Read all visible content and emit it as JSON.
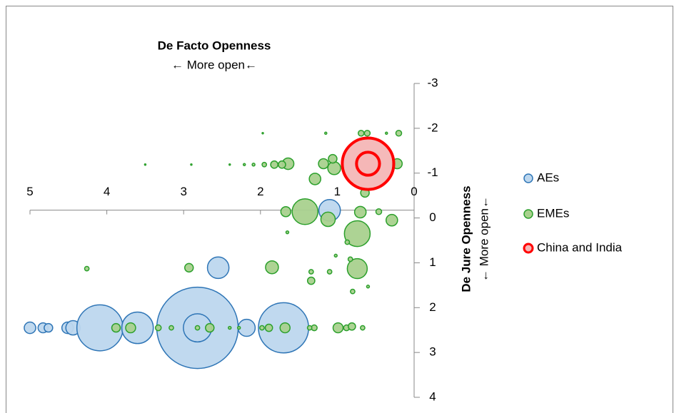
{
  "chart_data": {
    "type": "bubble",
    "x_title": "De Facto Openness",
    "x_subtitle": "← More open←",
    "y_title": "De Jure Openness",
    "y_subtitle": "← More open←",
    "xlim": [
      0,
      5
    ],
    "x_reversed": true,
    "xticks": [
      5,
      4,
      3,
      2,
      1,
      0
    ],
    "ylim": [
      -3,
      4
    ],
    "y_reversed": true,
    "yticks": [
      -3,
      -2,
      -1,
      0,
      1,
      2,
      3,
      4
    ],
    "legend": "right",
    "series": [
      {
        "name": "AEs",
        "color": "#bdd7ee",
        "stroke": "#2e75b6",
        "x": [
          5.0,
          4.83,
          4.76,
          4.51,
          4.44,
          4.09,
          3.6,
          2.82,
          2.82,
          2.18,
          1.7,
          2.55,
          1.1
        ],
        "y": [
          2.45,
          2.45,
          2.45,
          2.45,
          2.45,
          2.45,
          2.45,
          2.45,
          2.45,
          2.45,
          2.45,
          1.11,
          -0.17
        ],
        "size": [
          2,
          1.5,
          1.1,
          2,
          3.1,
          32,
          15,
          100,
          12,
          4.4,
          38,
          7,
          7
        ]
      },
      {
        "name": "EMEs",
        "color": "#a9d18e",
        "stroke": "#2ca02c",
        "x": [
          0.74,
          1.42,
          0.74,
          1.12,
          0.7,
          0.29,
          1.67,
          0.46,
          1.29,
          1.04,
          1.18,
          1.06,
          0.22,
          0.64,
          1.64,
          1.72,
          1.82,
          1.95,
          2.09,
          2.21,
          2.4,
          2.9,
          3.5,
          0.69,
          0.61,
          0.2,
          1.97,
          1.15,
          0.36,
          1.85,
          2.93,
          4.26,
          1.68,
          1.89,
          1.98,
          3.88,
          3.69,
          3.33,
          3.16,
          2.66,
          2.82,
          2.4,
          2.28,
          1.3,
          0.99,
          0.88,
          0.81,
          0.67,
          1.36,
          0.87,
          0.83,
          1.34,
          1.34,
          1.02,
          1.1,
          0.8,
          0.6,
          1.65
        ],
        "y": [
          0.35,
          -0.14,
          1.13,
          0.03,
          -0.13,
          0.05,
          -0.14,
          -0.14,
          -0.87,
          -1.11,
          -1.21,
          -1.32,
          -1.21,
          -0.56,
          -1.21,
          -1.19,
          -1.19,
          -1.19,
          -1.19,
          -1.19,
          -1.19,
          -1.19,
          -1.19,
          -1.89,
          -1.89,
          -1.89,
          -1.89,
          -1.89,
          -1.89,
          1.1,
          1.11,
          1.13,
          2.45,
          2.45,
          2.45,
          2.45,
          2.45,
          2.45,
          2.45,
          2.45,
          2.45,
          2.45,
          2.45,
          2.45,
          2.45,
          2.45,
          2.42,
          2.45,
          2.45,
          0.54,
          0.92,
          1.2,
          1.4,
          0.84,
          1.2,
          1.64,
          1.53,
          0.32
        ],
        "size": [
          10,
          10,
          6,
          3.1,
          2,
          2,
          1.5,
          0.5,
          2,
          2.5,
          1.5,
          1.1,
          1.5,
          1.1,
          2,
          0.8,
          0.8,
          0.3,
          0.12,
          0.07,
          0.03,
          0.03,
          0.03,
          0.5,
          0.5,
          0.5,
          0.03,
          0.07,
          0.07,
          2.5,
          1.1,
          0.3,
          1.5,
          0.8,
          0.3,
          1.1,
          1.5,
          0.5,
          0.3,
          1.1,
          0.3,
          0.12,
          0.12,
          0.5,
          1.5,
          0.5,
          0.8,
          0.3,
          0.3,
          0.3,
          0.3,
          0.3,
          0.8,
          0.12,
          0.3,
          0.3,
          0.12,
          0.12
        ]
      },
      {
        "name": "China and India",
        "color": "#f4b6b6",
        "stroke": "#ff0000",
        "x": [
          0.6,
          0.6
        ],
        "y": [
          -1.21,
          -1.21
        ],
        "size": [
          40,
          8
        ]
      }
    ]
  }
}
